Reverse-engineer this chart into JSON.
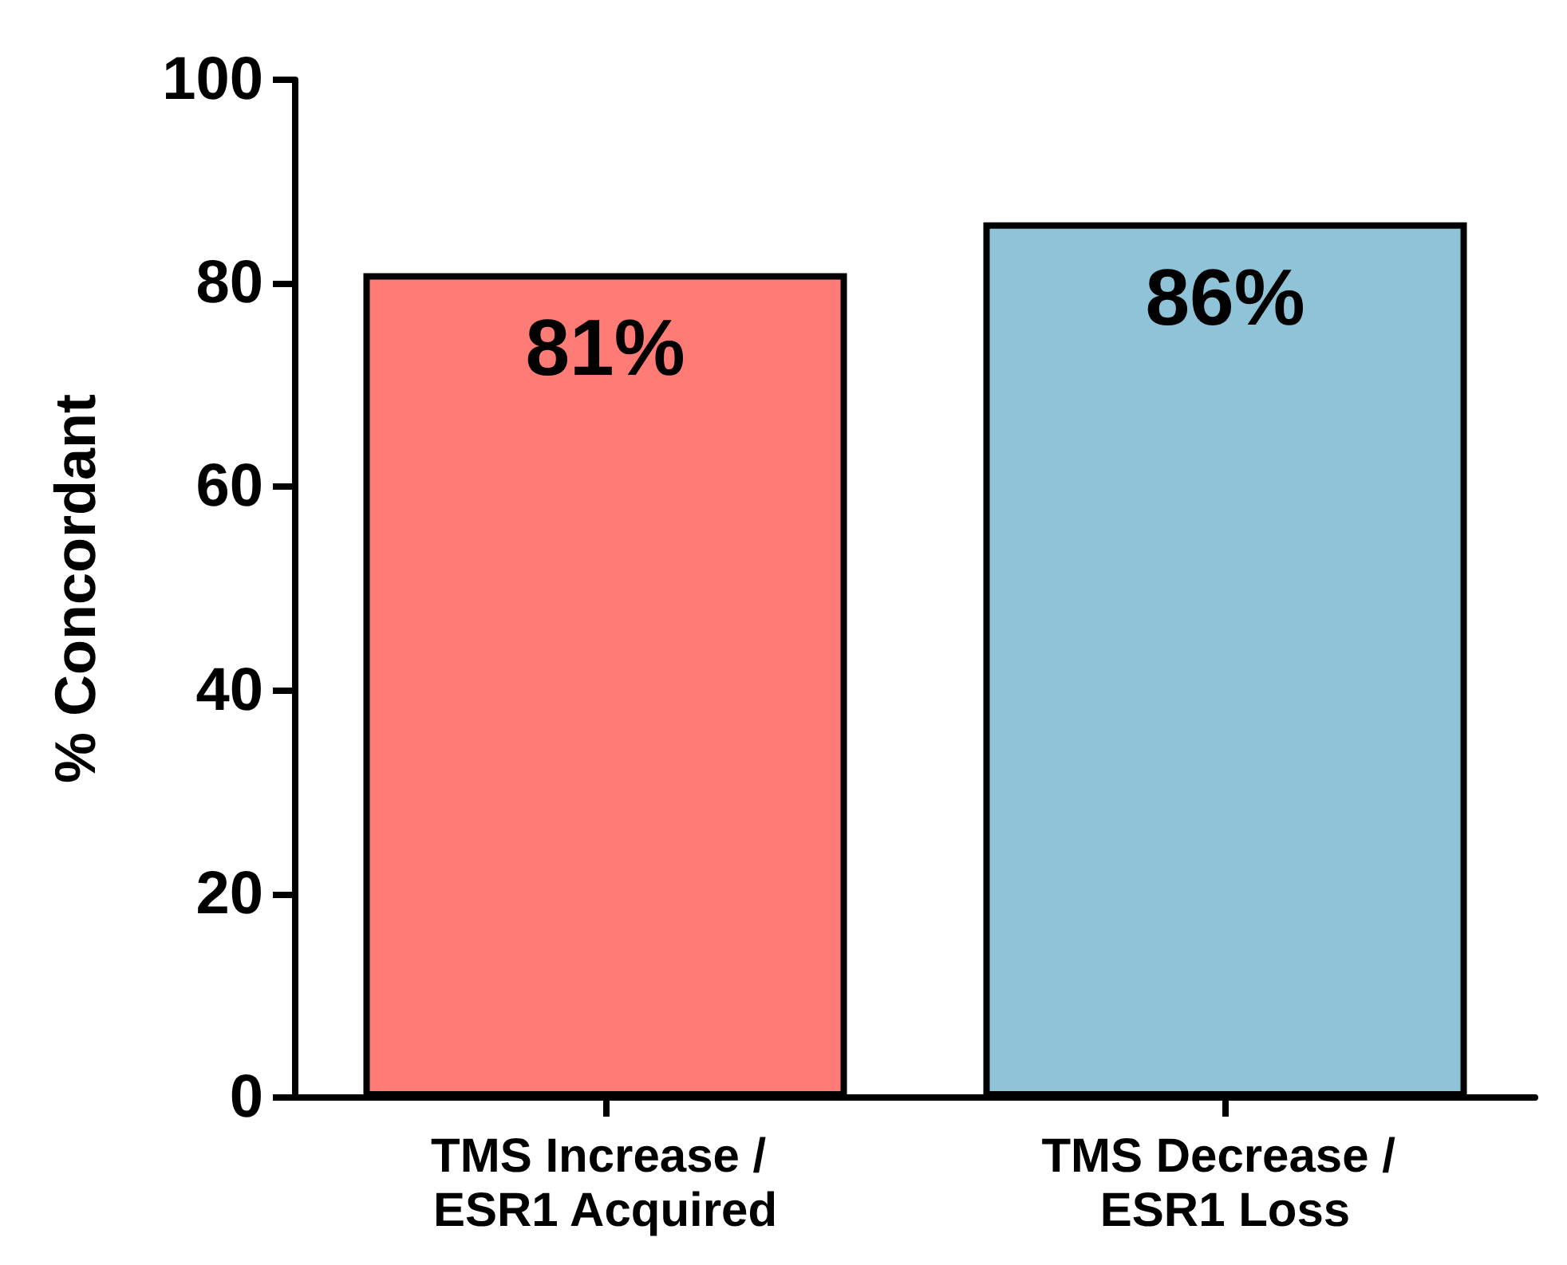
{
  "chart_data": {
    "type": "bar",
    "ylabel": "% Concordant",
    "categories": [
      "TMS Increase / ESR1 Acquired",
      "TMS Decrease / ESR1 Loss"
    ],
    "values": [
      81,
      86
    ],
    "colors": [
      "#ff7b76",
      "#8fc3d8"
    ],
    "value_labels": [
      "81%",
      "86%"
    ],
    "ylim": [
      0,
      100
    ],
    "yticks": [
      0,
      20,
      40,
      60,
      80,
      100
    ]
  }
}
